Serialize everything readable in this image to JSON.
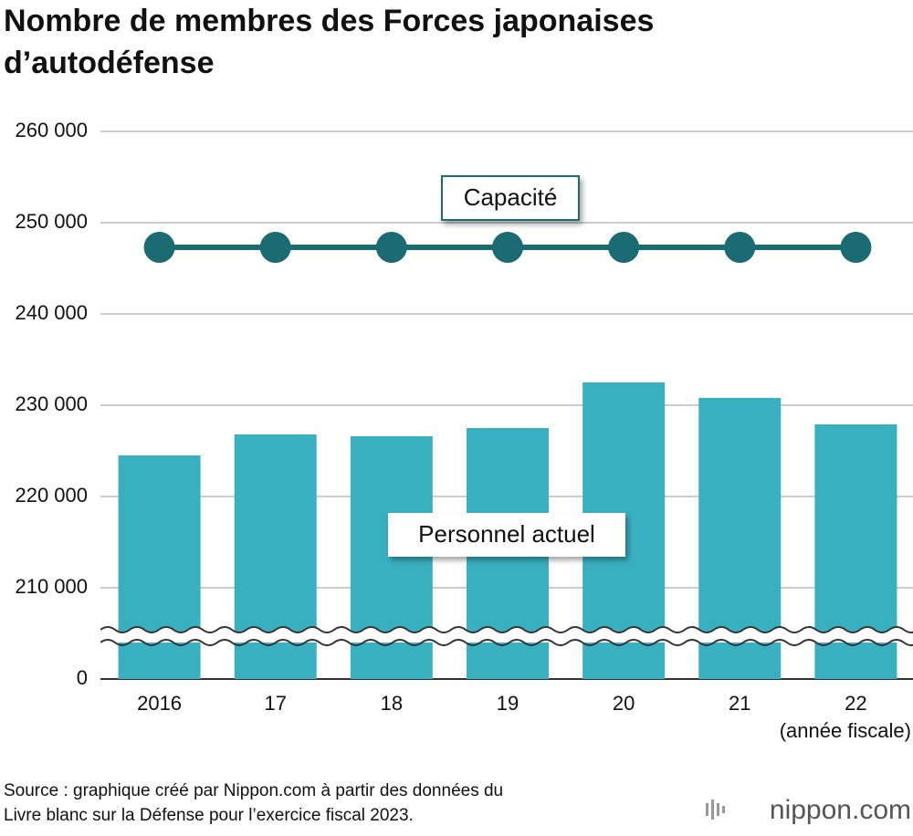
{
  "chart_data": {
    "type": "bar_line",
    "title": [
      "Nombre de membres des Forces japonaises",
      "d’autodéfense"
    ],
    "categories": [
      "2016",
      "17",
      "18",
      "19",
      "20",
      "21",
      "22"
    ],
    "x_label": "(année fiscale)",
    "series": [
      {
        "name": "Personnel actuel",
        "type": "bar",
        "color": "#38b0bf",
        "values": [
          224500,
          226800,
          226600,
          227500,
          232500,
          230800,
          227900
        ]
      },
      {
        "name": "Capacité",
        "type": "line",
        "color": "#1a6b72",
        "values": [
          247300,
          247300,
          247300,
          247300,
          247300,
          247300,
          247300
        ]
      }
    ],
    "ylim": [
      0,
      260000
    ],
    "yticks": [
      0,
      {
        "value": 210000,
        "label": "210 000"
      },
      {
        "value": 220000,
        "label": "220 000"
      },
      {
        "value": 230000,
        "label": "230 000"
      },
      {
        "value": 240000,
        "label": "240 000"
      },
      {
        "value": 250000,
        "label": "250 000"
      },
      {
        "value": 260000,
        "label": "260 000"
      }
    ],
    "axis_break": true,
    "grid": true
  },
  "source": [
    "Source : graphique créé par Nippon.com à partir des données du",
    "Livre blanc sur la Défense pour l’exercice fiscal 2023."
  ],
  "logo": "nippon.com"
}
